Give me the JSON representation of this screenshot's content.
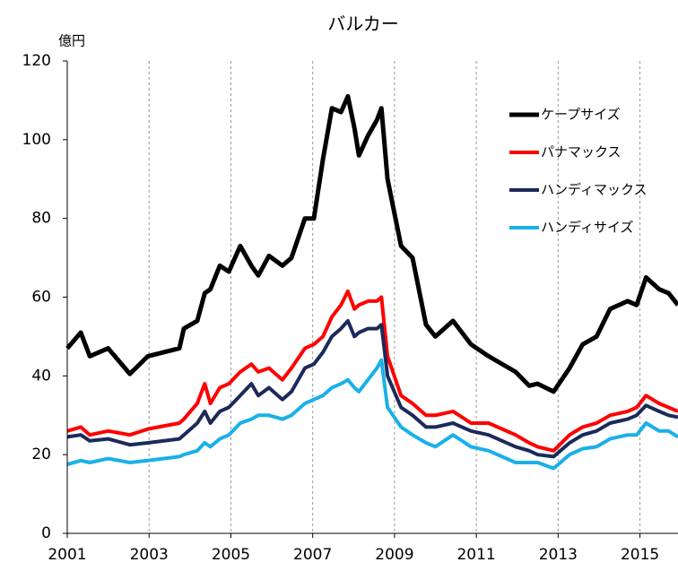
{
  "chart_data": {
    "type": "line",
    "title": "バルカー",
    "y_label": "億円",
    "x": [
      2001.0,
      2001.33,
      2001.55,
      2002.0,
      2002.53,
      2002.97,
      2003.74,
      2003.85,
      2004.18,
      2004.36,
      2004.5,
      2004.73,
      2004.95,
      2005.23,
      2005.5,
      2005.67,
      2005.93,
      2006.26,
      2006.48,
      2006.81,
      2007.03,
      2007.25,
      2007.47,
      2007.69,
      2007.86,
      2008.02,
      2008.13,
      2008.35,
      2008.57,
      2008.68,
      2008.83,
      2009.16,
      2009.44,
      2009.77,
      2010.0,
      2010.43,
      2010.87,
      2011.3,
      2011.96,
      2012.29,
      2012.5,
      2012.89,
      2013.28,
      2013.6,
      2013.94,
      2014.27,
      2014.7,
      2014.92,
      2015.15,
      2015.47,
      2015.7,
      2015.93
    ],
    "series": [
      {
        "name": "ケープサイズ",
        "color": "#000000",
        "width": 5,
        "values": [
          47,
          51,
          45,
          47,
          40.5,
          45,
          47,
          52,
          54,
          61,
          62,
          68,
          66.5,
          73,
          68,
          65.5,
          70.5,
          68,
          70,
          80,
          80,
          95,
          108,
          107,
          111,
          103,
          96,
          101,
          105,
          108,
          90,
          73,
          70,
          53,
          50,
          54,
          48,
          45,
          41,
          37.5,
          38,
          36,
          42,
          48,
          50,
          57,
          59,
          58,
          65,
          62,
          61,
          58
        ]
      },
      {
        "name": "パナマックス",
        "color": "#ff0000",
        "width": 4,
        "values": [
          26,
          27,
          25,
          26,
          25,
          26.5,
          28,
          29,
          33,
          38,
          33,
          37,
          38,
          41,
          43,
          41,
          42,
          39,
          42,
          47,
          48,
          50,
          55,
          58,
          61.5,
          57,
          58,
          59,
          59,
          60,
          45,
          35,
          33,
          30,
          30,
          31,
          28,
          28,
          25,
          23,
          22,
          21,
          25,
          27,
          28,
          30,
          31,
          32,
          35,
          33,
          32,
          31
        ]
      },
      {
        "name": "ハンディマックス",
        "color": "#1c2a5a",
        "width": 4,
        "values": [
          24.5,
          25,
          23.5,
          24,
          22.5,
          23,
          24,
          25,
          28,
          31,
          28,
          31,
          32,
          35,
          38,
          35,
          37,
          34,
          36,
          42,
          43,
          46,
          50,
          52,
          54,
          50,
          51,
          52,
          52,
          53,
          40,
          32,
          30,
          27,
          27,
          28,
          26,
          25,
          22,
          21,
          20,
          19.5,
          23,
          25,
          26,
          28,
          29,
          30,
          32.5,
          31,
          30,
          29.5
        ]
      },
      {
        "name": "ハンディサイズ",
        "color": "#1ab0e8",
        "width": 4,
        "values": [
          17.5,
          18.5,
          18,
          19,
          18,
          18.5,
          19.5,
          20,
          21,
          23,
          22,
          24,
          25,
          28,
          29,
          30,
          30,
          29,
          30,
          33,
          34,
          35,
          37,
          38,
          39,
          37,
          36,
          39,
          42,
          44,
          32,
          27,
          25,
          23,
          22,
          25,
          22,
          21,
          18,
          18,
          18,
          16.5,
          20,
          21.5,
          22,
          24,
          25,
          25,
          28,
          26,
          26,
          24.5
        ]
      }
    ],
    "xlim": [
      2001,
      2015.93
    ],
    "xticks": [
      2001,
      2003,
      2005,
      2007,
      2009,
      2011,
      2013,
      2015
    ],
    "ylim": [
      0,
      120
    ],
    "yticks": [
      0,
      20,
      40,
      60,
      80,
      100,
      120
    ],
    "grid": "x",
    "legend": "upper right"
  }
}
